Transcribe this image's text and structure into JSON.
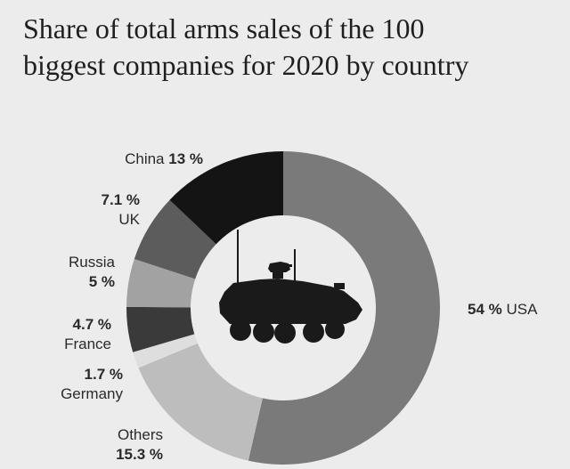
{
  "title_lines": [
    "Share of total arms sales of the 100",
    "biggest companies for 2020 by country"
  ],
  "chart_data": {
    "type": "pie",
    "variant": "donut",
    "title": "Share of total arms sales of the 100 biggest companies for 2020 by country",
    "unit": "%",
    "slices": [
      {
        "name": "USA",
        "value": 54,
        "value_label": "54 %",
        "color": "#7a7a7a"
      },
      {
        "name": "Others",
        "value": 15.3,
        "value_label": "15.3 %",
        "color": "#bdbdbd"
      },
      {
        "name": "Germany",
        "value": 1.7,
        "value_label": "1.7 %",
        "color": "#dedede"
      },
      {
        "name": "France",
        "value": 4.7,
        "value_label": "4.7 %",
        "color": "#3a3a3a"
      },
      {
        "name": "Russia",
        "value": 5,
        "value_label": "5 %",
        "color": "#a2a2a2"
      },
      {
        "name": "UK",
        "value": 7.1,
        "value_label": "7.1 %",
        "color": "#5c5c5c"
      },
      {
        "name": "China",
        "value": 13,
        "value_label": "13 %",
        "color": "#141414"
      }
    ]
  },
  "colors": {
    "background": "#ececec",
    "vehicle": "#1a1a1a"
  }
}
